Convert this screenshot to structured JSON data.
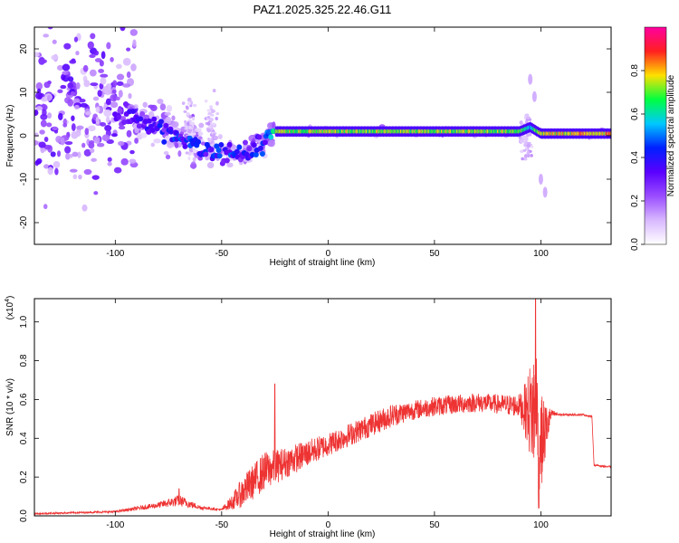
{
  "chart_data": [
    {
      "type": "heatmap",
      "title": "PAZ1.2025.325.22.46.G11",
      "xlabel": "Height of straight line (km)",
      "ylabel": "Frequency (Hz)",
      "xlim": [
        -138,
        133
      ],
      "ylim": [
        -25,
        25
      ],
      "xticks": [
        -100,
        -50,
        0,
        50,
        100
      ],
      "yticks": [
        -20,
        -10,
        0,
        10,
        20
      ],
      "colorbar": {
        "label": "Normalized spectral amplitude",
        "range": [
          0.0,
          1.0
        ],
        "ticks": [
          0.0,
          0.2,
          0.4,
          0.6,
          0.8
        ],
        "tick_labels": [
          "0.0",
          "0.2",
          "0.4",
          "0.6",
          "0.8"
        ],
        "colors": [
          "#ffffff",
          "#d8b8ff",
          "#9a4dff",
          "#5a00ff",
          "#0020ff",
          "#00c8ff",
          "#00ff40",
          "#ffe000",
          "#ff2020",
          "#ff00a0"
        ]
      },
      "ridge": {
        "x": [
          -100,
          -90,
          -80,
          -70,
          -60,
          -50,
          -45,
          -40,
          -35,
          -30,
          -25,
          -20,
          0,
          50,
          90,
          95,
          100,
          133
        ],
        "frequency": [
          5,
          4,
          2,
          0,
          -3,
          -4,
          -4,
          -5,
          -2,
          -2,
          1,
          1,
          1,
          1,
          1,
          2,
          0.5,
          0.5
        ],
        "amplitude": [
          0.3,
          0.35,
          0.4,
          0.45,
          0.45,
          0.45,
          0.45,
          0.4,
          0.45,
          0.5,
          0.75,
          0.75,
          0.75,
          0.75,
          0.75,
          0.6,
          0.8,
          0.85
        ]
      },
      "satellite_features": {
        "x": [
          95,
          97,
          100,
          102
        ],
        "frequency": [
          13,
          9,
          -10,
          -13
        ]
      }
    },
    {
      "type": "line",
      "xlabel": "Height of straight line (km)",
      "ylabel": "SNR (10 * v/v)",
      "y_multiplier": "(x10",
      "y_multiplier_exp": "4",
      "y_multiplier_close": ")",
      "xlim": [
        -138,
        133
      ],
      "ylim": [
        0,
        1.12
      ],
      "xticks": [
        -100,
        -50,
        0,
        50,
        100
      ],
      "yticks": [
        0.0,
        0.2,
        0.4,
        0.6,
        0.8,
        1.0
      ],
      "ytick_labels": [
        "0.0",
        "0.2",
        "0.4",
        "0.6",
        "0.8",
        "1.0"
      ],
      "color": "#ee3333",
      "envelope": {
        "x": [
          -138,
          -100,
          -80,
          -70,
          -60,
          -50,
          -45,
          -40,
          -35,
          -30,
          -20,
          -10,
          0,
          10,
          20,
          30,
          40,
          50,
          60,
          70,
          80,
          90,
          93,
          96,
          98,
          100,
          105,
          110,
          120,
          124,
          125,
          133
        ],
        "baseline": [
          0.01,
          0.02,
          0.05,
          0.07,
          0.04,
          0.03,
          0.06,
          0.1,
          0.15,
          0.2,
          0.25,
          0.3,
          0.35,
          0.4,
          0.45,
          0.5,
          0.53,
          0.55,
          0.56,
          0.57,
          0.56,
          0.55,
          0.5,
          0.45,
          0.4,
          0.3,
          0.52,
          0.52,
          0.52,
          0.51,
          0.26,
          0.25
        ],
        "noise": [
          0.004,
          0.005,
          0.015,
          0.03,
          0.01,
          0.005,
          0.04,
          0.08,
          0.09,
          0.1,
          0.08,
          0.07,
          0.06,
          0.06,
          0.06,
          0.06,
          0.05,
          0.05,
          0.05,
          0.05,
          0.05,
          0.06,
          0.15,
          0.3,
          0.4,
          0.25,
          0.02,
          0.005,
          0.005,
          0.005,
          0.005,
          0.005
        ]
      },
      "peaks": [
        {
          "x": 97.5,
          "y": 1.12
        },
        {
          "x": 99,
          "y": 0.04
        },
        {
          "x": -70,
          "y": 0.14
        },
        {
          "x": -25,
          "y": 0.68
        }
      ]
    }
  ]
}
